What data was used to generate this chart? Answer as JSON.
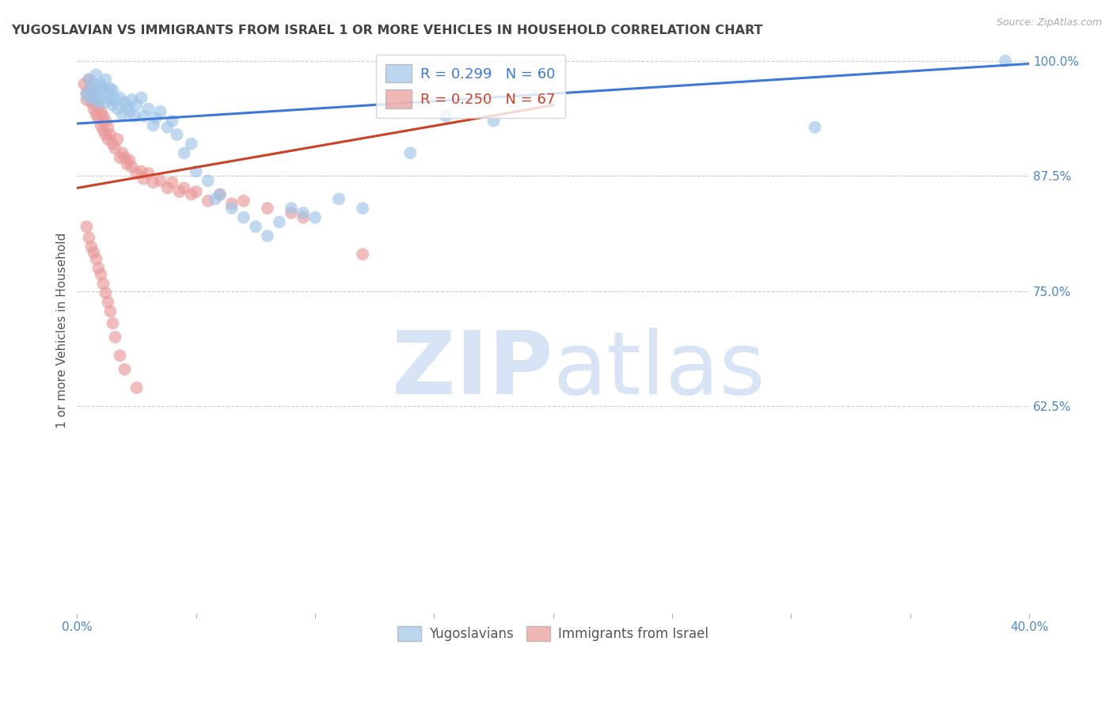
{
  "title": "YUGOSLAVIAN VS IMMIGRANTS FROM ISRAEL 1 OR MORE VEHICLES IN HOUSEHOLD CORRELATION CHART",
  "source": "Source: ZipAtlas.com",
  "ylabel": "1 or more Vehicles in Household",
  "xlabel": "",
  "legend_blue_label": "Yugoslavians",
  "legend_pink_label": "Immigrants from Israel",
  "R_blue": 0.299,
  "N_blue": 60,
  "R_pink": 0.25,
  "N_pink": 67,
  "xlim": [
    0.0,
    0.4
  ],
  "ylim": [
    0.4,
    1.015
  ],
  "xticks": [
    0.0,
    0.05,
    0.1,
    0.15,
    0.2,
    0.25,
    0.3,
    0.35,
    0.4
  ],
  "xticklabels": [
    "0.0%",
    "",
    "",
    "",
    "",
    "",
    "",
    "",
    "40.0%"
  ],
  "yticks": [
    0.625,
    0.75,
    0.875,
    1.0
  ],
  "yticklabels": [
    "62.5%",
    "75.0%",
    "87.5%",
    "100.0%"
  ],
  "blue_color": "#9fc5e8",
  "pink_color": "#ea9999",
  "blue_line_color": "#3c78d8",
  "pink_line_color": "#cc4125",
  "grid_color": "#cccccc",
  "title_color": "#434343",
  "axis_color": "#4a86c8",
  "watermark_zip_color": "#d6e4f5",
  "watermark_atlas_color": "#d6e4f5",
  "blue_scatter_x": [
    0.004,
    0.005,
    0.005,
    0.006,
    0.007,
    0.007,
    0.008,
    0.008,
    0.009,
    0.009,
    0.01,
    0.01,
    0.011,
    0.012,
    0.012,
    0.013,
    0.014,
    0.014,
    0.015,
    0.015,
    0.016,
    0.017,
    0.018,
    0.019,
    0.02,
    0.021,
    0.022,
    0.023,
    0.024,
    0.025,
    0.027,
    0.028,
    0.03,
    0.032,
    0.033,
    0.035,
    0.038,
    0.04,
    0.042,
    0.045,
    0.048,
    0.05,
    0.055,
    0.058,
    0.06,
    0.065,
    0.07,
    0.075,
    0.08,
    0.085,
    0.09,
    0.095,
    0.1,
    0.11,
    0.12,
    0.14,
    0.155,
    0.175,
    0.31,
    0.39
  ],
  "blue_scatter_y": [
    0.965,
    0.98,
    0.96,
    0.97,
    0.975,
    0.96,
    0.985,
    0.965,
    0.97,
    0.955,
    0.975,
    0.96,
    0.97,
    0.98,
    0.955,
    0.965,
    0.97,
    0.958,
    0.968,
    0.952,
    0.958,
    0.948,
    0.96,
    0.942,
    0.955,
    0.95,
    0.945,
    0.958,
    0.94,
    0.952,
    0.96,
    0.94,
    0.948,
    0.93,
    0.938,
    0.945,
    0.928,
    0.935,
    0.92,
    0.9,
    0.91,
    0.88,
    0.87,
    0.85,
    0.855,
    0.84,
    0.83,
    0.82,
    0.81,
    0.825,
    0.84,
    0.835,
    0.83,
    0.85,
    0.84,
    0.9,
    0.94,
    0.935,
    0.928,
    1.0
  ],
  "pink_scatter_x": [
    0.003,
    0.004,
    0.004,
    0.005,
    0.005,
    0.006,
    0.006,
    0.007,
    0.007,
    0.008,
    0.008,
    0.009,
    0.009,
    0.01,
    0.01,
    0.011,
    0.011,
    0.012,
    0.012,
    0.013,
    0.013,
    0.014,
    0.015,
    0.016,
    0.017,
    0.018,
    0.019,
    0.02,
    0.021,
    0.022,
    0.023,
    0.025,
    0.027,
    0.028,
    0.03,
    0.032,
    0.035,
    0.038,
    0.04,
    0.043,
    0.045,
    0.048,
    0.05,
    0.055,
    0.06,
    0.065,
    0.07,
    0.08,
    0.09,
    0.095,
    0.004,
    0.005,
    0.006,
    0.007,
    0.008,
    0.009,
    0.01,
    0.011,
    0.012,
    0.013,
    0.014,
    0.015,
    0.016,
    0.018,
    0.02,
    0.025,
    0.12
  ],
  "pink_scatter_y": [
    0.975,
    0.965,
    0.958,
    0.98,
    0.968,
    0.97,
    0.955,
    0.962,
    0.948,
    0.958,
    0.942,
    0.95,
    0.938,
    0.945,
    0.93,
    0.94,
    0.925,
    0.935,
    0.92,
    0.928,
    0.915,
    0.92,
    0.91,
    0.905,
    0.915,
    0.895,
    0.9,
    0.895,
    0.888,
    0.892,
    0.885,
    0.878,
    0.88,
    0.872,
    0.878,
    0.868,
    0.87,
    0.862,
    0.868,
    0.858,
    0.862,
    0.855,
    0.858,
    0.848,
    0.855,
    0.845,
    0.848,
    0.84,
    0.835,
    0.83,
    0.82,
    0.808,
    0.798,
    0.792,
    0.785,
    0.775,
    0.768,
    0.758,
    0.748,
    0.738,
    0.728,
    0.715,
    0.7,
    0.68,
    0.665,
    0.645,
    0.79
  ],
  "background_color": "#ffffff"
}
